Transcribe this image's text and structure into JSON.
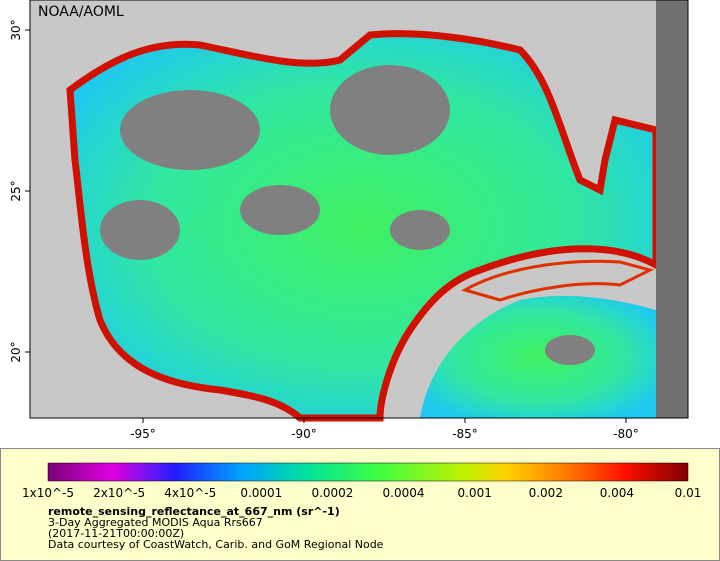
{
  "map": {
    "credit": "NOAA/AOML",
    "lat_labels": [
      "30°",
      "25°",
      "20°"
    ],
    "lon_labels": [
      "-95°",
      "-90°",
      "-85°",
      "-80°"
    ]
  },
  "colorbar": {
    "ticks": [
      "1x10^-5",
      "2x10^-5",
      "4x10^-5",
      "0.0001",
      "0.0002",
      "0.0004",
      "0.001",
      "0.002",
      "0.004",
      "0.01"
    ],
    "variable": "remote_sensing_reflectance_at_667_nm (sr^-1)",
    "product": "3-Day Aggregated MODIS Aqua Rrs667",
    "time": "(2017-11-21T00:00:00Z)",
    "source": "Data courtesy of CoastWatch, Carib. and GoM Regional Node"
  }
}
